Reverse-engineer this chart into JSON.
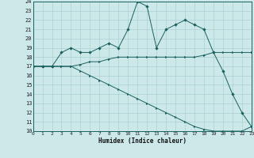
{
  "xlabel": "Humidex (Indice chaleur)",
  "xlim": [
    0,
    23
  ],
  "ylim": [
    10,
    24
  ],
  "xticks": [
    0,
    1,
    2,
    3,
    4,
    5,
    6,
    7,
    8,
    9,
    10,
    11,
    12,
    13,
    14,
    15,
    16,
    17,
    18,
    19,
    20,
    21,
    22,
    23
  ],
  "yticks": [
    10,
    11,
    12,
    13,
    14,
    15,
    16,
    17,
    18,
    19,
    20,
    21,
    22,
    23,
    24
  ],
  "bg_color": "#cce8e8",
  "line_color": "#1a6060",
  "grid_color": "#b0d4d4",
  "series": {
    "line_top": {
      "x": [
        0,
        1,
        2,
        3,
        4,
        5,
        6,
        7,
        8,
        9,
        10,
        11,
        12,
        13,
        14,
        15,
        16,
        17,
        18,
        19,
        20,
        21,
        22,
        23
      ],
      "y": [
        17,
        17,
        17,
        18.5,
        19,
        18.5,
        18.5,
        19,
        19.5,
        19,
        21,
        24,
        23.5,
        19,
        21,
        21.5,
        22,
        21.5,
        21,
        18.5,
        16.5,
        14,
        12,
        10.5
      ],
      "marker": "D"
    },
    "line_mid": {
      "x": [
        0,
        1,
        2,
        3,
        4,
        5,
        6,
        7,
        8,
        9,
        10,
        11,
        12,
        13,
        14,
        15,
        16,
        17,
        18,
        19,
        20,
        21,
        22,
        23
      ],
      "y": [
        17,
        17,
        17,
        17,
        17,
        17.2,
        17.5,
        17.5,
        17.8,
        18,
        18,
        18,
        18,
        18,
        18,
        18,
        18,
        18,
        18.2,
        18.5,
        18.5,
        18.5,
        18.5,
        18.5
      ],
      "marker": ">"
    },
    "line_bot": {
      "x": [
        0,
        1,
        2,
        3,
        4,
        5,
        6,
        7,
        8,
        9,
        10,
        11,
        12,
        13,
        14,
        15,
        16,
        17,
        18,
        19,
        20,
        21,
        22,
        23
      ],
      "y": [
        17,
        17,
        17,
        17,
        17,
        16.5,
        16,
        15.5,
        15,
        14.5,
        14,
        13.5,
        13,
        12.5,
        12,
        11.5,
        11,
        10.5,
        10.2,
        10,
        10,
        10,
        10,
        10.5
      ],
      "marker": ">"
    }
  }
}
